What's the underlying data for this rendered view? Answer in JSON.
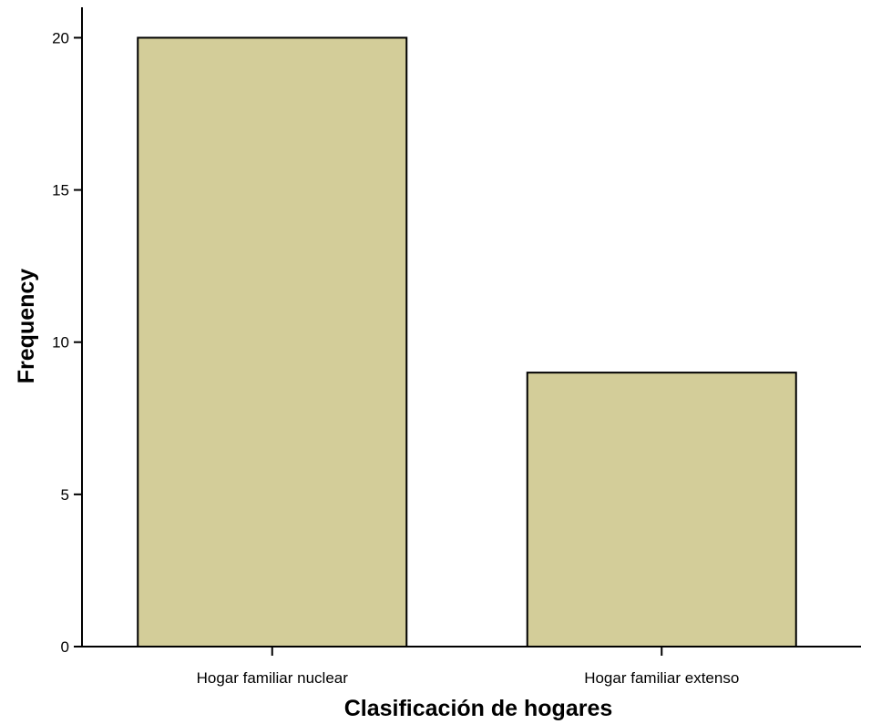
{
  "chart_data": {
    "type": "bar",
    "categories": [
      "Hogar familiar nuclear",
      "Hogar familiar extenso"
    ],
    "values": [
      20,
      9
    ],
    "xlabel": "Clasificación de hogares",
    "ylabel": "Frequency",
    "ylim": [
      0,
      21
    ],
    "yticks": [
      0,
      5,
      10,
      15,
      20
    ],
    "grid": false,
    "legend": "none",
    "colors": {
      "bar_fill": "#d3cd99",
      "bar_stroke": "#000000",
      "background": "#ffffff"
    }
  }
}
